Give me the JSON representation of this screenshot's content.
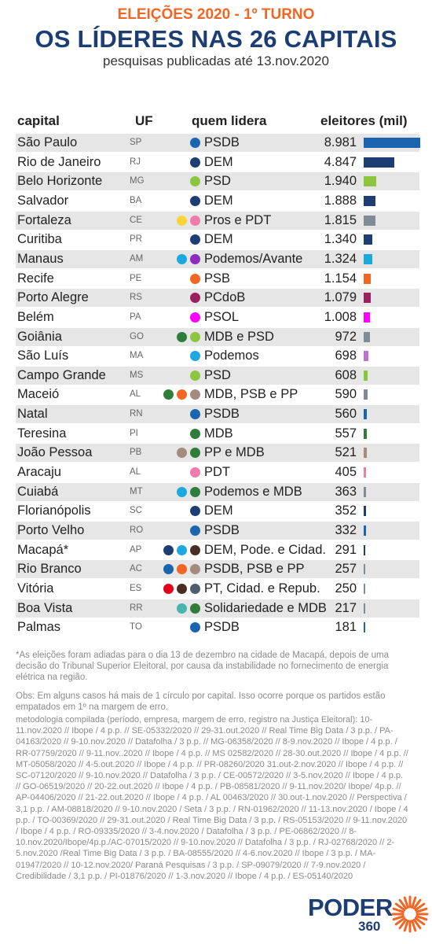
{
  "header": {
    "kicker": "ELEIÇÕES 2020 - 1º TURNO",
    "title": "OS LÍDERES NAS 26 CAPITAIS",
    "subtitle": "pesquisas publicadas até 13.nov.2020"
  },
  "colors": {
    "header_orange": "#f26522",
    "header_navy": "#1d3e73",
    "row_stripe": "#e6e6e6"
  },
  "party_colors": {
    "PSDB": "#1a64b0",
    "DEM": "#1d3e73",
    "PSD": "#8cc63f",
    "Pros": "#f9d33a",
    "PDT": "#f07aa8",
    "Podemos": "#1ea8e0",
    "Avante": "#8e2bc0",
    "PSB": "#f26522",
    "PCdoB": "#9b1f5e",
    "PSOL": "#ff00ff",
    "MDB": "#2e7d3b",
    "PP": "#a38b7e",
    "Cidadania": "#4a2d22",
    "PT": "#e3001b",
    "Republicanos": "#4d5f6e",
    "Solidariedade": "#48b6b0"
  },
  "chart_data": {
    "type": "table",
    "columns": [
      "capital",
      "UF",
      "quem lidera",
      "eleitores (mil)"
    ],
    "value_unit": "eleitores (mil)",
    "rows": [
      {
        "capital": "São Paulo",
        "uf": "SP",
        "leader": "PSDB",
        "parties": [
          "PSDB"
        ],
        "value": 8981,
        "value_label": "8.981",
        "bar_color": "#1a64b0"
      },
      {
        "capital": "Rio de Janeiro",
        "uf": "RJ",
        "leader": "DEM",
        "parties": [
          "DEM"
        ],
        "value": 4847,
        "value_label": "4.847",
        "bar_color": "#1d3e73"
      },
      {
        "capital": "Belo Horizonte",
        "uf": "MG",
        "leader": "PSD",
        "parties": [
          "PSD"
        ],
        "value": 1940,
        "value_label": "1.940",
        "bar_color": "#8cc63f"
      },
      {
        "capital": "Salvador",
        "uf": "BA",
        "leader": "DEM",
        "parties": [
          "DEM"
        ],
        "value": 1888,
        "value_label": "1.888",
        "bar_color": "#1d3e73"
      },
      {
        "capital": "Fortaleza",
        "uf": "CE",
        "leader": "Pros e PDT",
        "parties": [
          "Pros",
          "PDT"
        ],
        "value": 1815,
        "value_label": "1.815",
        "bar_color": "#7f8c94"
      },
      {
        "capital": "Curitiba",
        "uf": "PR",
        "leader": "DEM",
        "parties": [
          "DEM"
        ],
        "value": 1340,
        "value_label": "1.340",
        "bar_color": "#1d3e73"
      },
      {
        "capital": "Manaus",
        "uf": "AM",
        "leader": "Podemos/Avante",
        "parties": [
          "Podemos",
          "Avante"
        ],
        "value": 1324,
        "value_label": "1.324",
        "bar_color": "#1ea8e0"
      },
      {
        "capital": "Recife",
        "uf": "PE",
        "leader": "PSB",
        "parties": [
          "PSB"
        ],
        "value": 1154,
        "value_label": "1.154",
        "bar_color": "#f26522"
      },
      {
        "capital": "Porto Alegre",
        "uf": "RS",
        "leader": "PCdoB",
        "parties": [
          "PCdoB"
        ],
        "value": 1079,
        "value_label": "1.079",
        "bar_color": "#9b1f5e"
      },
      {
        "capital": "Belém",
        "uf": "PA",
        "leader": "PSOL",
        "parties": [
          "PSOL"
        ],
        "value": 1008,
        "value_label": "1.008",
        "bar_color": "#ff00ff"
      },
      {
        "capital": "Goiânia",
        "uf": "GO",
        "leader": "MDB e PSD",
        "parties": [
          "MDB",
          "PSD"
        ],
        "value": 972,
        "value_label": "972",
        "bar_color": "#7f8c94"
      },
      {
        "capital": "São Luís",
        "uf": "MA",
        "leader": "Podemos",
        "parties": [
          "Podemos"
        ],
        "value": 698,
        "value_label": "698",
        "bar_color": "#c070d8"
      },
      {
        "capital": "Campo Grande",
        "uf": "MS",
        "leader": "PSD",
        "parties": [
          "PSD"
        ],
        "value": 608,
        "value_label": "608",
        "bar_color": "#8cc63f"
      },
      {
        "capital": "Maceió",
        "uf": "AL",
        "leader": "MDB, PSB e PP",
        "parties": [
          "MDB",
          "PSB",
          "PP"
        ],
        "value": 590,
        "value_label": "590",
        "bar_color": "#7f8c94"
      },
      {
        "capital": "Natal",
        "uf": "RN",
        "leader": "PSDB",
        "parties": [
          "PSDB"
        ],
        "value": 560,
        "value_label": "560",
        "bar_color": "#1a64b0"
      },
      {
        "capital": "Teresina",
        "uf": "PI",
        "leader": "MDB",
        "parties": [
          "MDB"
        ],
        "value": 557,
        "value_label": "557",
        "bar_color": "#2e7d3b"
      },
      {
        "capital": "João Pessoa",
        "uf": "PB",
        "leader": "PP e MDB",
        "parties": [
          "PP",
          "MDB"
        ],
        "value": 521,
        "value_label": "521",
        "bar_color": "#a38b7e"
      },
      {
        "capital": "Aracaju",
        "uf": "AL",
        "leader": "PDT",
        "parties": [
          "PDT"
        ],
        "value": 405,
        "value_label": "405",
        "bar_color": "#f07aa8"
      },
      {
        "capital": "Cuiabá",
        "uf": "MT",
        "leader": "Podemos e MDB",
        "parties": [
          "Podemos",
          "MDB"
        ],
        "value": 363,
        "value_label": "363",
        "bar_color": "#7f8c94"
      },
      {
        "capital": "Florianópolis",
        "uf": "SC",
        "leader": "DEM",
        "parties": [
          "DEM"
        ],
        "value": 352,
        "value_label": "352",
        "bar_color": "#1d3e73"
      },
      {
        "capital": "Porto Velho",
        "uf": "RO",
        "leader": "PSDB",
        "parties": [
          "PSDB"
        ],
        "value": 332,
        "value_label": "332",
        "bar_color": "#1a64b0"
      },
      {
        "capital": "Macapá*",
        "uf": "AP",
        "leader": "DEM, Pode. e Cidad.",
        "parties": [
          "DEM",
          "Podemos",
          "Cidadania"
        ],
        "value": 291,
        "value_label": "291",
        "bar_color": "#1d3e73"
      },
      {
        "capital": "Rio Branco",
        "uf": "AC",
        "leader": "PSDB, PSB e PP",
        "parties": [
          "PSDB",
          "PSB",
          "PP"
        ],
        "value": 257,
        "value_label": "257",
        "bar_color": "#7f8c94"
      },
      {
        "capital": "Vitória",
        "uf": "ES",
        "leader": "PT, Cidad. e Repub.",
        "parties": [
          "PT",
          "Cidadania",
          "Republicanos"
        ],
        "value": 250,
        "value_label": "250",
        "bar_color": "#7f8c94"
      },
      {
        "capital": "Boa Vista",
        "uf": "RR",
        "leader": "Solidariedade e MDB",
        "parties": [
          "Solidariedade",
          "MDB"
        ],
        "value": 217,
        "value_label": "217",
        "bar_color": "#7f8c94"
      },
      {
        "capital": "Palmas",
        "uf": "TO",
        "leader": "PSDB",
        "parties": [
          "PSDB"
        ],
        "value": 181,
        "value_label": "181",
        "bar_color": "#1a64b0"
      }
    ]
  },
  "notes": {
    "macapa": "*As eleições foram adiadas para o dia 13 de dezembro na cidade de Macapá, depois de uma decisão do Tribunal Superior Eleitoral, por causa da instabilidade no fornecimento de energia elétrica na região.",
    "obs": "Obs: Em alguns casos há mais de 1 círculo por capital. Isso ocorre porque os partidos estão empatados em 1º na margem de erro.",
    "methodology": "metodologia compilada (período, empresa, margem de erro, registro na Justiça Eleitoral): 10-11.nov.2020 // Ibope / 4 p.p. // SE-05332/2020 // 29-31.out.2020 // Real Time Big Data / 3 p.p. / PA-04163/2020 // 9-10.nov.2020 // Datafolha / 3 p.p. // MG-06358/2020 // 8-9.nov.2020 // Ibope / 4 p.p. / RR-07759/2020 // 9-11.nov..2020 // Ibope / 4 p.p. // MS 02582/2020 // 28-30.out.2020 // Ibope / 4 p.p. // MT-05058/2020 // 4-5.out.2020 // Ibope / 4 p.p. // PR-08260/2020 31.out-2.nov.2020 // Ibope / 4 p.p. // SC-07120/2020 // 9-10.nov.2020 // Datafolha / 3 p.p. / CE-00572/2020 // 3-5.nov.2020 // Ibope / 4 p.p. // GO-06519/2020 // 20-22.out.2020 // Ibope / 4 p.p. / PB-08581/2020 // 9-11.nov.2020/ Ibope/ 4p.p. // AP-04406/2020 // 21-22.out.2020 // Ibope / 4 p.p. / AL 00463/2020 // 30.out-1.nov.2020 // Perspectiva / 3,1 p.p. / AM-08818/2020 // 9-10.nov.2020 / Seta / 3 p.p. / RN-01962/2020 // 11-13.nov.2020 / Ibope / 4 p.p. / TO-00369/2020 // 29-31.out.2020 / Real Time Big Data / 3 p.p. / RS-05153/2020 // 9-11.nov.2020 / Ibope / 4 p.p. / RO-09335/2020 // 3-4.nov.2020 / Datafolha / 3 p.p. / PE-06862/2020 // 8-10.nov.2020/Ibope/4p.p./AC-07015/2020 // 9-10.nov.2020 // Datafolha / 3 p.p. / RJ-02768/2020 // 2-5.nov.2020 /Real Time Big Data / 3 p.p. / BA-08555/2020 // 4-6.nov.2020 // Ibope / 3 p.p. / MA-01947/2020 // 10-12.nov.2020/ Paraná Pesquisas / 3 p.p. / SP-09079/2020 // 7-9.nov.2020 / Credibilidade / 3,1 p.p. / PI-01876/2020 // 1-3.nov.2020 // Ibope / 4 p.p. / ES-05140/2020"
  },
  "logo": {
    "word": "PODER",
    "number": "360"
  }
}
